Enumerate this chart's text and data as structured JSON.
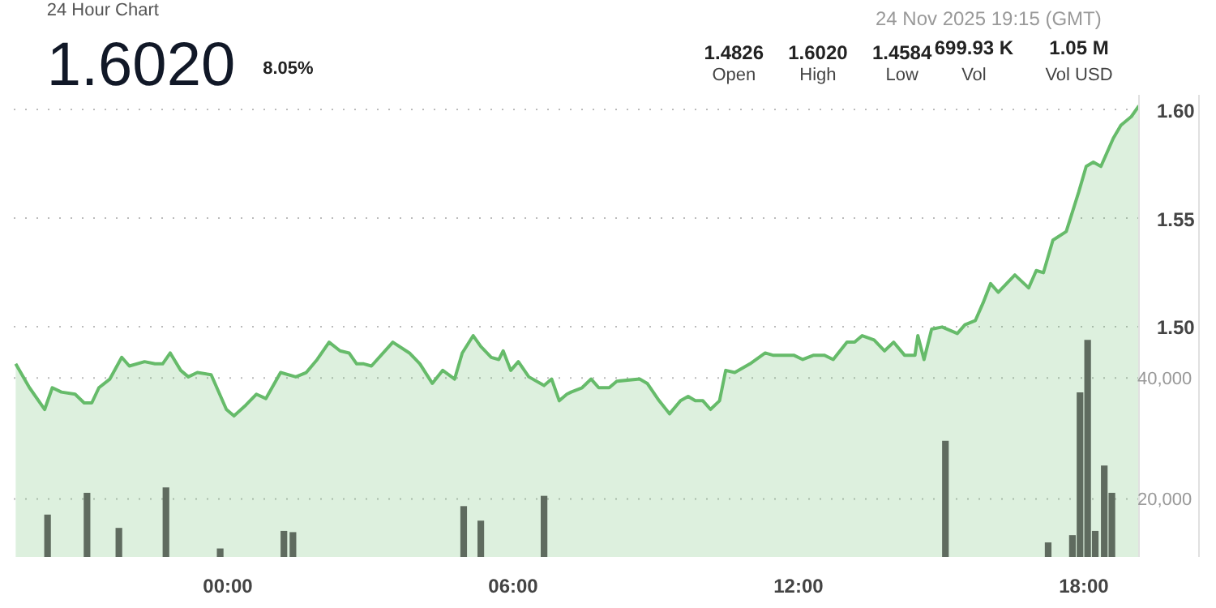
{
  "chart_data": {
    "type": "area",
    "title": "24 Hour Chart",
    "annotations": [
      "1.6020",
      "8.05%",
      "24 Nov 2025 19:15 (GMT)",
      "1.4826",
      "Open",
      "1.6020",
      "High",
      "1.4584",
      "Low",
      "699.93 K",
      "Vol",
      "1.05 M",
      "Vol USD"
    ],
    "xlim": [
      -4.5,
      19.16
    ],
    "xticks": [
      {
        "value": 0,
        "label": "00:00"
      },
      {
        "value": 6,
        "label": "06:00"
      },
      {
        "value": 12,
        "label": "12:00"
      },
      {
        "value": 18,
        "label": "18:00"
      }
    ],
    "ylim": [
      1.394,
      1.607
    ],
    "yticks": [
      {
        "value": 1.5,
        "label": "1.50"
      },
      {
        "value": 1.55,
        "label": "1.55"
      },
      {
        "value": 1.6,
        "label": "1.60"
      }
    ],
    "y2lim": [
      10400,
      86800
    ],
    "y2ticks": [
      {
        "value": 20000,
        "label": "20,000"
      },
      {
        "value": 40000,
        "label": "40,000"
      }
    ],
    "grid": "y",
    "series": [
      {
        "color": "#66bb6a",
        "x": [
          -4.46,
          -4.17,
          -3.85,
          -3.69,
          -3.5,
          -3.21,
          -3.02,
          -2.86,
          -2.71,
          -2.48,
          -2.23,
          -2.07,
          -1.75,
          -1.53,
          -1.37,
          -1.21,
          -0.99,
          -0.83,
          -0.64,
          -0.35,
          -0.03,
          0.13,
          0.38,
          0.6,
          0.8,
          1.11,
          1.43,
          1.65,
          1.88,
          2.13,
          2.36,
          2.55,
          2.71,
          2.86,
          3.02,
          3.47,
          3.82,
          4.04,
          4.3,
          4.52,
          4.77,
          4.93,
          5.16,
          5.32,
          5.54,
          5.7,
          5.79,
          5.95,
          6.11,
          6.33,
          6.65,
          6.81,
          6.97,
          7.13,
          7.22,
          7.45,
          7.64,
          7.8,
          8.02,
          8.18,
          8.66,
          8.82,
          9.07,
          9.29,
          9.52,
          9.68,
          9.83,
          9.99,
          10.15,
          10.34,
          10.47,
          10.66,
          10.98,
          11.3,
          11.46,
          11.9,
          12.09,
          12.32,
          12.54,
          12.73,
          13.02,
          13.18,
          13.34,
          13.59,
          13.81,
          14.0,
          14.23,
          14.45,
          14.51,
          14.64,
          14.8,
          15.02,
          15.34,
          15.5,
          15.72,
          15.88,
          16.04,
          16.2,
          16.55,
          16.84,
          17.0,
          17.15,
          17.35,
          17.63,
          17.89,
          18.05,
          18.2,
          18.36,
          18.62,
          18.78,
          19.0,
          19.16
        ],
        "values": [
          1.483,
          1.472,
          1.462,
          1.472,
          1.47,
          1.469,
          1.465,
          1.465,
          1.472,
          1.476,
          1.486,
          1.482,
          1.484,
          1.483,
          1.483,
          1.488,
          1.48,
          1.477,
          1.479,
          1.478,
          1.462,
          1.459,
          1.464,
          1.469,
          1.467,
          1.479,
          1.477,
          1.479,
          1.485,
          1.493,
          1.489,
          1.488,
          1.483,
          1.483,
          1.482,
          1.493,
          1.488,
          1.483,
          1.474,
          1.48,
          1.476,
          1.488,
          1.496,
          1.491,
          1.486,
          1.485,
          1.489,
          1.48,
          1.484,
          1.477,
          1.473,
          1.476,
          1.466,
          1.469,
          1.47,
          1.472,
          1.476,
          1.472,
          1.472,
          1.475,
          1.476,
          1.474,
          1.466,
          1.46,
          1.466,
          1.468,
          1.466,
          1.466,
          1.462,
          1.466,
          1.48,
          1.479,
          1.483,
          1.488,
          1.487,
          1.487,
          1.485,
          1.487,
          1.487,
          1.485,
          1.493,
          1.493,
          1.496,
          1.494,
          1.489,
          1.493,
          1.487,
          1.487,
          1.496,
          1.485,
          1.499,
          1.5,
          1.497,
          1.501,
          1.503,
          1.511,
          1.52,
          1.516,
          1.524,
          1.518,
          1.526,
          1.525,
          1.54,
          1.544,
          1.562,
          1.574,
          1.576,
          1.574,
          1.587,
          1.593,
          1.597,
          1.602
        ]
      },
      {
        "type": "bar",
        "axis": "y2",
        "color": "#5f6b5f",
        "x": [
          -3.79,
          -2.96,
          -2.29,
          -1.3,
          -0.16,
          1.18,
          1.37,
          4.96,
          5.32,
          6.65,
          15.09,
          17.25,
          17.76,
          17.92,
          18.08,
          18.24,
          18.43,
          18.59
        ],
        "values": [
          17400,
          21000,
          15200,
          21900,
          11800,
          14700,
          14500,
          18800,
          16400,
          20500,
          29600,
          12800,
          14000,
          37600,
          46300,
          14700,
          25500,
          21000
        ]
      }
    ]
  }
}
